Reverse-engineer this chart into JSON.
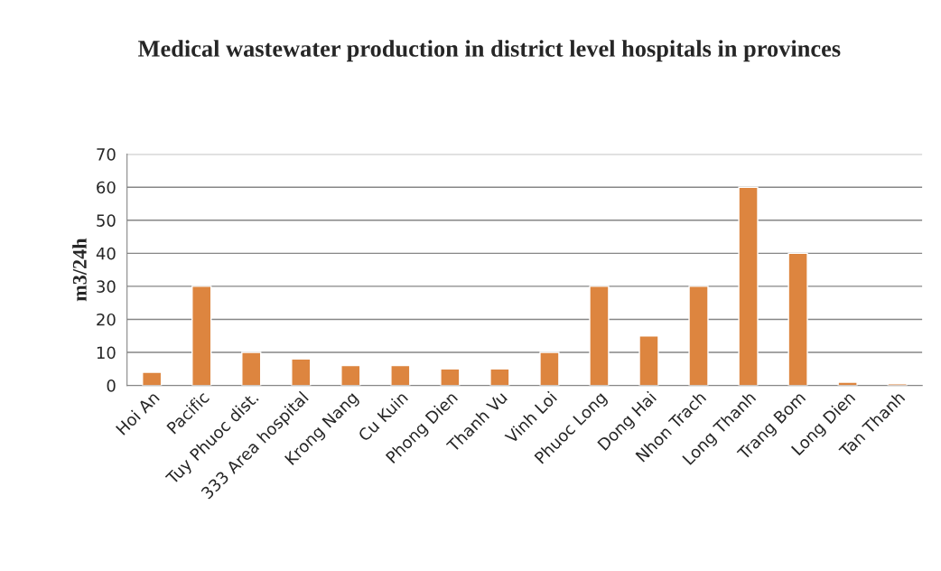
{
  "chart_data": {
    "type": "bar",
    "title": "Medical wastewater production in district level hospitals in provinces",
    "ylabel": "m3/24h",
    "categories": [
      "Hoi An",
      "Pacific",
      "Tuy Phuoc dist.",
      "333 Area hospital",
      "Krong Nang",
      "Cu Kuin",
      "Phong Dien",
      "Thanh Vu",
      "Vinh Loi",
      "Phuoc Long",
      "Dong Hai",
      "Nhon Trach",
      "Long Thanh",
      "Trang Bom",
      "Long Dien",
      "Tan Thanh"
    ],
    "values": [
      4,
      30,
      10,
      8,
      6,
      6,
      5,
      5,
      10,
      30,
      15,
      30,
      60,
      40,
      1,
      0.5
    ],
    "color": "#dd853f",
    "ylim": [
      0,
      70
    ],
    "yticks": [
      0,
      10,
      20,
      30,
      40,
      50,
      60,
      70
    ],
    "grid": "y",
    "legend": false
  }
}
